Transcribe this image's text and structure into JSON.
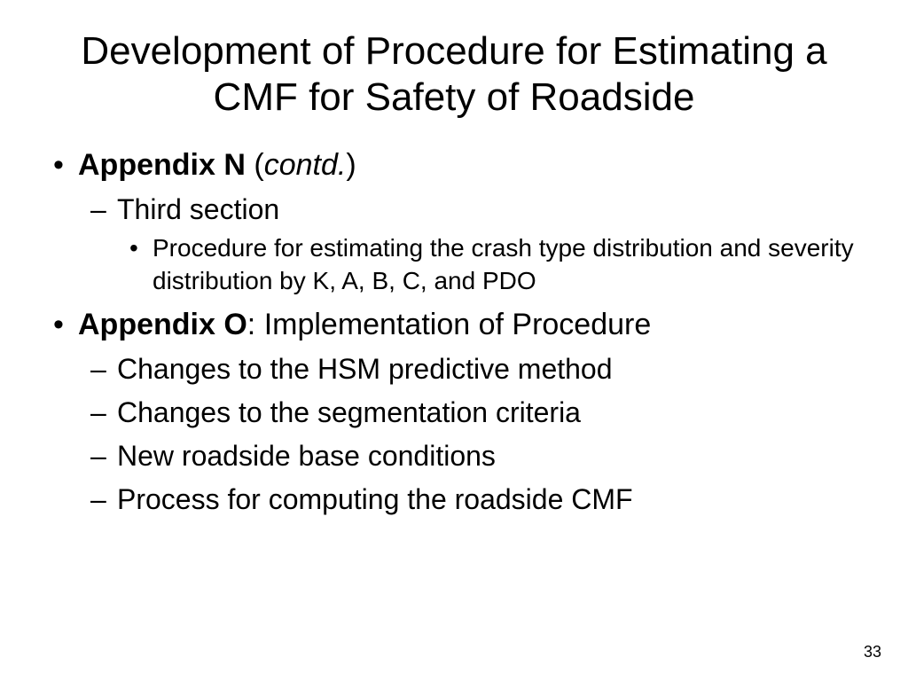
{
  "slide": {
    "title": "Development of Procedure for Estimating a CMF for Safety of Roadside",
    "title_fontsize": 44,
    "title_weight": 400,
    "title_color": "#000000",
    "bullets": [
      {
        "label_bold": "Appendix N",
        "label_rest_prefix": " (",
        "label_rest_italic": "contd.",
        "label_rest_suffix": ")",
        "children": [
          {
            "label": "Third section",
            "children": [
              {
                "label": "Procedure for estimating the crash type distribution and severity distribution by K, A, B, C, and PDO"
              }
            ]
          }
        ]
      },
      {
        "label_bold": "Appendix O",
        "label_rest": ": Implementation of Procedure",
        "children": [
          {
            "label": "Changes to the HSM predictive method"
          },
          {
            "label": "Changes to the segmentation criteria"
          },
          {
            "label": "New roadside base conditions"
          },
          {
            "label": "Process for computing the roadside CMF"
          }
        ]
      }
    ],
    "page_number": "33",
    "background_color": "#ffffff",
    "text_color": "#000000",
    "font_family": "Arial",
    "lvl1_fontsize": 34,
    "lvl2_fontsize": 32,
    "lvl3_fontsize": 28
  }
}
